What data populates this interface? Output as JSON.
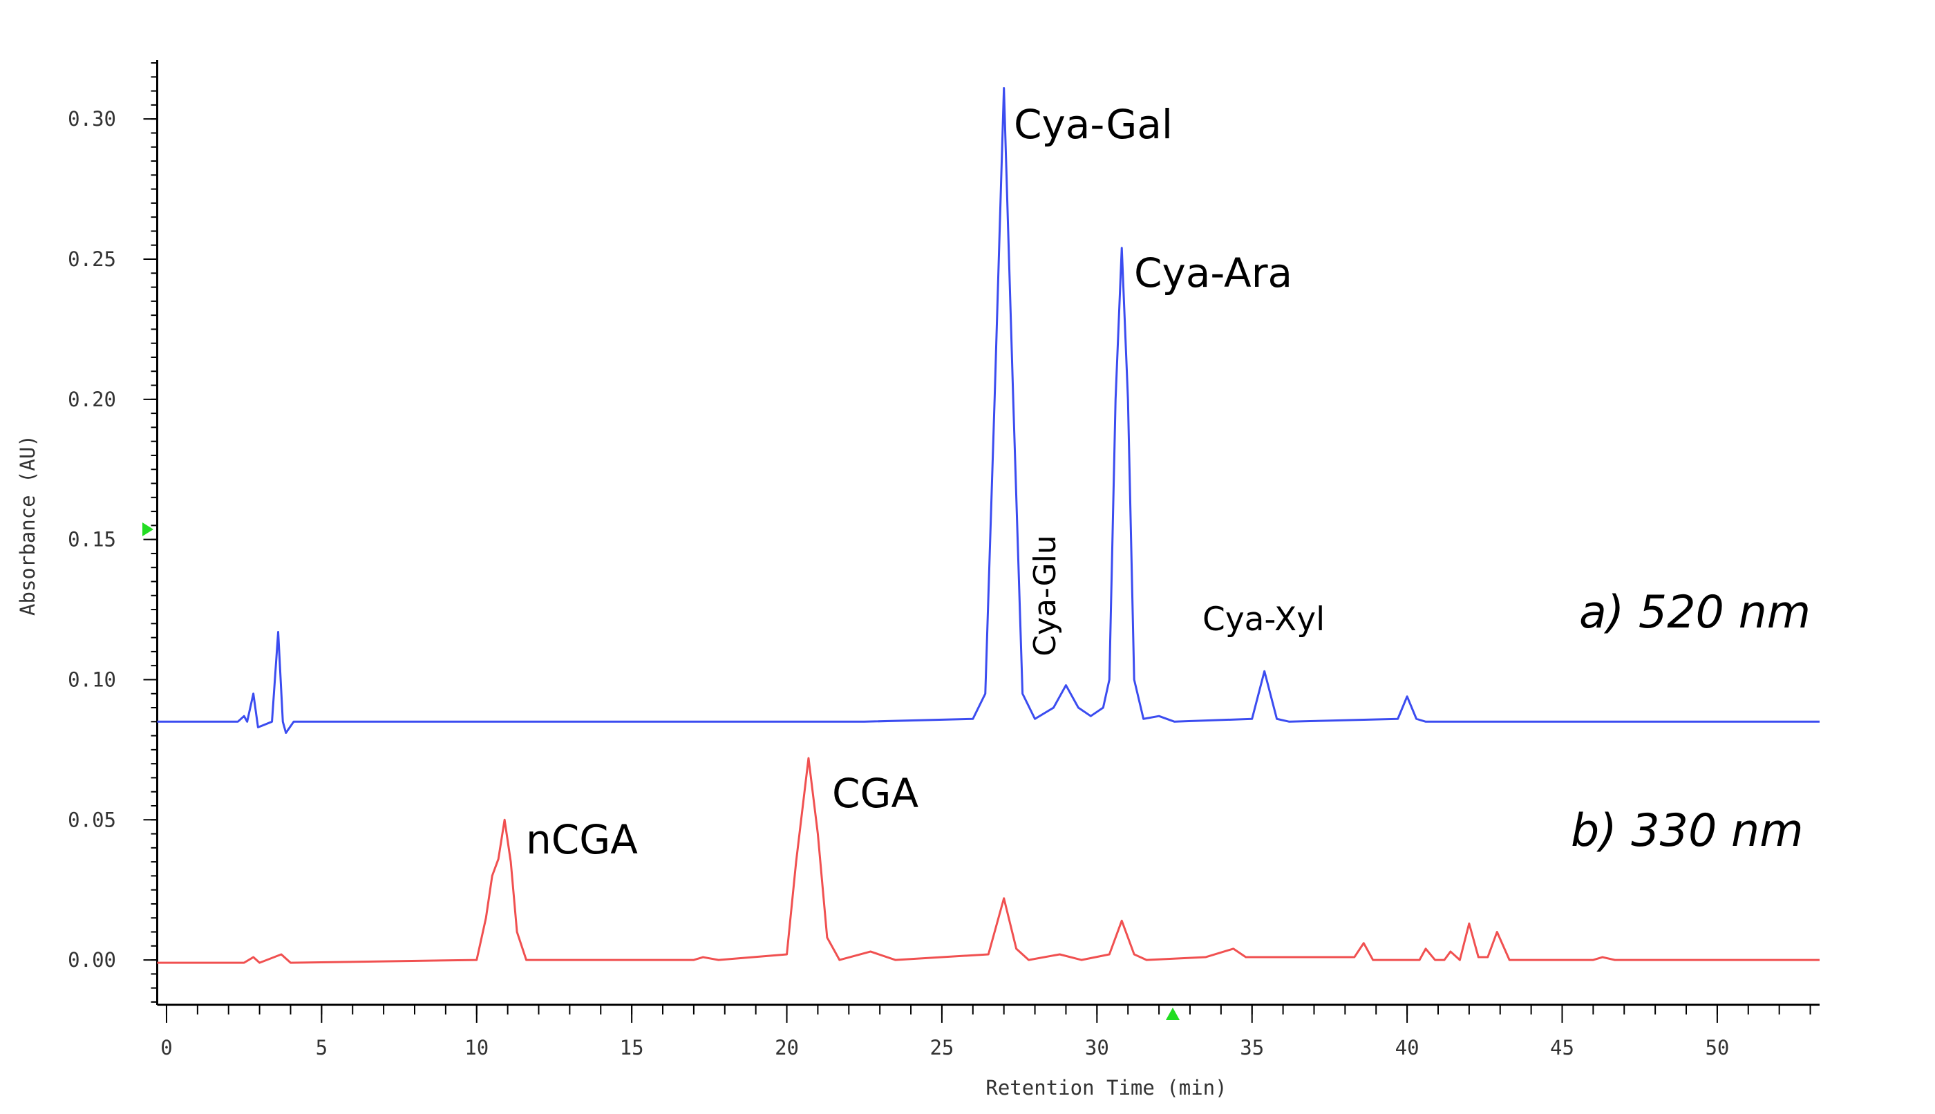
{
  "chart_data": {
    "type": "line",
    "x_label": "Retention Time (min)",
    "y_label": "Absorbance (AU)",
    "xlim": [
      -0.3,
      53.3
    ],
    "ylim": [
      -0.016,
      0.321
    ],
    "xticks": [
      0,
      5,
      10,
      15,
      20,
      25,
      30,
      35,
      40,
      45,
      50
    ],
    "yticks": [
      {
        "value": 0,
        "label": "0.00"
      },
      {
        "value": 0.05,
        "label": "0.05"
      },
      {
        "value": 0.1,
        "label": "0.10"
      },
      {
        "value": 0.15,
        "label": "0.15"
      },
      {
        "value": 0.2,
        "label": "0.20"
      },
      {
        "value": 0.25,
        "label": "0.25"
      },
      {
        "value": 0.3,
        "label": "0.30"
      }
    ],
    "annotations": [
      "Cya-Gal",
      "Cya-Ara",
      "Cya-Glu",
      "Cya-Xyl",
      "a) 520 nm",
      "b) 330 nm",
      "nCGA",
      "CGA"
    ],
    "series": [
      {
        "color": "#3b4cf0",
        "x": [
          -0.3,
          2.3,
          2.5,
          2.6,
          2.8,
          2.95,
          3.4,
          3.6,
          3.75,
          3.85,
          4.1,
          22.5,
          26.0,
          26.4,
          26.7,
          27.0,
          27.3,
          27.6,
          28.0,
          28.6,
          29.0,
          29.4,
          29.8,
          30.2,
          30.4,
          30.6,
          30.8,
          31.0,
          31.2,
          31.5,
          32.0,
          32.5,
          35.0,
          35.4,
          35.8,
          36.2,
          39.7,
          40.0,
          40.3,
          40.6,
          53.3
        ],
        "values": [
          0.085,
          0.085,
          0.087,
          0.085,
          0.095,
          0.083,
          0.085,
          0.117,
          0.085,
          0.081,
          0.085,
          0.085,
          0.086,
          0.095,
          0.2,
          0.311,
          0.2,
          0.095,
          0.086,
          0.09,
          0.098,
          0.09,
          0.087,
          0.09,
          0.1,
          0.2,
          0.254,
          0.2,
          0.1,
          0.086,
          0.087,
          0.085,
          0.086,
          0.103,
          0.086,
          0.085,
          0.086,
          0.094,
          0.086,
          0.085,
          0.085
        ]
      },
      {
        "color": "#f05050",
        "x": [
          -0.3,
          2.5,
          2.8,
          3.0,
          3.7,
          4.0,
          10.0,
          10.3,
          10.5,
          10.7,
          10.9,
          11.1,
          11.3,
          11.6,
          17.0,
          17.3,
          17.8,
          20.0,
          20.3,
          20.7,
          21.0,
          21.3,
          21.7,
          22.7,
          23.5,
          26.5,
          27.0,
          27.4,
          27.8,
          28.8,
          29.5,
          30.4,
          30.8,
          31.2,
          31.6,
          33.5,
          34.4,
          34.8,
          35.5,
          38.3,
          38.6,
          38.9,
          40.4,
          40.6,
          40.9,
          41.2,
          41.4,
          41.7,
          42.0,
          42.3,
          42.6,
          42.9,
          43.3,
          46.0,
          46.3,
          46.7,
          53.3
        ],
        "values": [
          -0.001,
          -0.001,
          0.001,
          -0.001,
          0.002,
          -0.001,
          0.0,
          0.015,
          0.03,
          0.036,
          0.05,
          0.035,
          0.01,
          0.0,
          0.0,
          0.001,
          0.0,
          0.002,
          0.035,
          0.072,
          0.045,
          0.008,
          0.0,
          0.003,
          0.0,
          0.002,
          0.022,
          0.004,
          0.0,
          0.002,
          0.0,
          0.002,
          0.014,
          0.002,
          0.0,
          0.001,
          0.004,
          0.001,
          0.001,
          0.001,
          0.006,
          0.0,
          0.0,
          0.004,
          0.0,
          0.0,
          0.003,
          0.0,
          0.013,
          0.001,
          0.001,
          0.01,
          0.0,
          0.0,
          0.001,
          0.0,
          0.0
        ]
      }
    ]
  }
}
